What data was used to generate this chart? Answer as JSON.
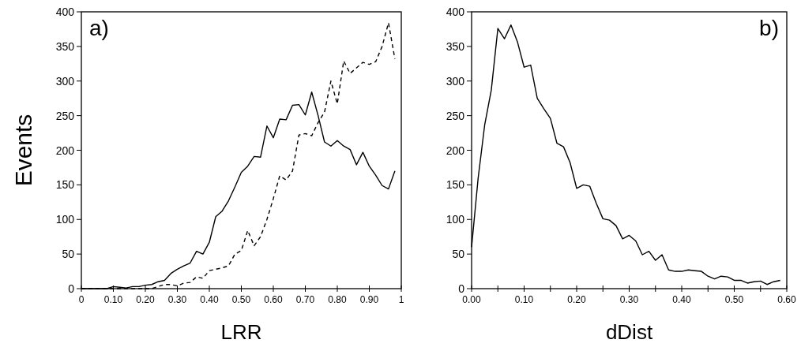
{
  "chart_data": [
    {
      "type": "line",
      "xlabel": "LRR",
      "ylabel": "Events",
      "annotations": [
        "a)"
      ],
      "xlim": [
        0,
        1
      ],
      "ylim": [
        0,
        400
      ],
      "xticks": [
        0,
        {
          "value": 0.1,
          "label": "0.10"
        },
        {
          "value": 0.2,
          "label": "0.20"
        },
        {
          "value": 0.3,
          "label": "0.30"
        },
        {
          "value": 0.4,
          "label": "0.40"
        },
        {
          "value": 0.5,
          "label": "0.50"
        },
        {
          "value": 0.6,
          "label": "0.60"
        },
        {
          "value": 0.7,
          "label": "0.70"
        },
        {
          "value": 0.8,
          "label": "0.80"
        },
        {
          "value": 0.9,
          "label": "0.90"
        },
        1
      ],
      "yticks": [
        0,
        50,
        100,
        150,
        200,
        250,
        300,
        350,
        400
      ],
      "x": [
        0,
        0.02,
        0.04,
        0.06,
        0.08,
        0.1,
        0.12,
        0.14,
        0.16,
        0.18,
        0.2,
        0.22,
        0.24,
        0.26,
        0.28,
        0.3,
        0.32,
        0.34,
        0.36,
        0.38,
        0.4,
        0.42,
        0.44,
        0.46,
        0.48,
        0.5,
        0.52,
        0.54,
        0.56,
        0.58,
        0.6,
        0.62,
        0.64,
        0.66,
        0.68,
        0.7,
        0.72,
        0.74,
        0.76,
        0.78,
        0.8,
        0.82,
        0.84,
        0.86,
        0.88,
        0.9,
        0.92,
        0.94,
        0.96,
        0.98
      ],
      "series": [
        {
          "color": "#000000",
          "line_style": "solid",
          "values": [
            0,
            0,
            0,
            0,
            0,
            3,
            2,
            1,
            3,
            3,
            5,
            6,
            10,
            12,
            22,
            28,
            33,
            37,
            54,
            50,
            67,
            104,
            112,
            127,
            147,
            168,
            177,
            191,
            190,
            235,
            218,
            245,
            244,
            265,
            266,
            251,
            284,
            250,
            212,
            206,
            214,
            206,
            201,
            179,
            197,
            177,
            164,
            149,
            144,
            170
          ]
        },
        {
          "color": "#000000",
          "line_style": "dashed",
          "values": [
            0,
            0,
            0,
            0,
            0,
            0,
            0,
            0,
            0,
            0,
            0,
            0,
            3,
            6,
            6,
            4,
            8,
            9,
            17,
            15,
            26,
            28,
            30,
            33,
            50,
            55,
            84,
            62,
            75,
            100,
            130,
            163,
            157,
            170,
            222,
            224,
            221,
            240,
            255,
            300,
            267,
            329,
            311,
            319,
            327,
            324,
            328,
            350,
            384,
            332
          ]
        }
      ]
    },
    {
      "type": "line",
      "xlabel": "dDist",
      "annotations": [
        "b)"
      ],
      "xlim": [
        0,
        0.6
      ],
      "ylim": [
        0,
        400
      ],
      "xticks": [
        {
          "value": 0,
          "label": "0.00"
        },
        {
          "value": 0.05,
          "label": null
        },
        {
          "value": 0.1,
          "label": "0.10"
        },
        {
          "value": 0.15,
          "label": null
        },
        {
          "value": 0.2,
          "label": "0.20"
        },
        {
          "value": 0.25,
          "label": null
        },
        {
          "value": 0.3,
          "label": "0.30"
        },
        {
          "value": 0.35,
          "label": null
        },
        {
          "value": 0.4,
          "label": "0.40"
        },
        {
          "value": 0.45,
          "label": null
        },
        {
          "value": 0.5,
          "label": "0.50"
        },
        {
          "value": 0.55,
          "label": null
        },
        {
          "value": 0.6,
          "label": "0.60"
        }
      ],
      "yticks": [
        0,
        50,
        100,
        150,
        200,
        250,
        300,
        350,
        400
      ],
      "x": [
        0,
        0.0125,
        0.025,
        0.0375,
        0.05,
        0.0625,
        0.075,
        0.0875,
        0.1,
        0.1125,
        0.125,
        0.1375,
        0.15,
        0.1625,
        0.175,
        0.1875,
        0.2,
        0.2125,
        0.225,
        0.2375,
        0.25,
        0.2625,
        0.275,
        0.2875,
        0.3,
        0.3125,
        0.325,
        0.3375,
        0.35,
        0.3625,
        0.375,
        0.3875,
        0.4,
        0.4125,
        0.425,
        0.4375,
        0.45,
        0.4625,
        0.475,
        0.4875,
        0.5,
        0.5125,
        0.525,
        0.5375,
        0.55,
        0.5625,
        0.575,
        0.5875
      ],
      "series": [
        {
          "color": "#000000",
          "line_style": "solid",
          "values": [
            60,
            160,
            237,
            287,
            376,
            361,
            381,
            356,
            320,
            323,
            275,
            260,
            246,
            210,
            205,
            182,
            145,
            150,
            148,
            123,
            101,
            99,
            91,
            72,
            77,
            69,
            49,
            54,
            41,
            49,
            27,
            25,
            25,
            27,
            26,
            25,
            18,
            14,
            18,
            17,
            12,
            12,
            8,
            10,
            11,
            6,
            10,
            12
          ]
        }
      ]
    }
  ]
}
